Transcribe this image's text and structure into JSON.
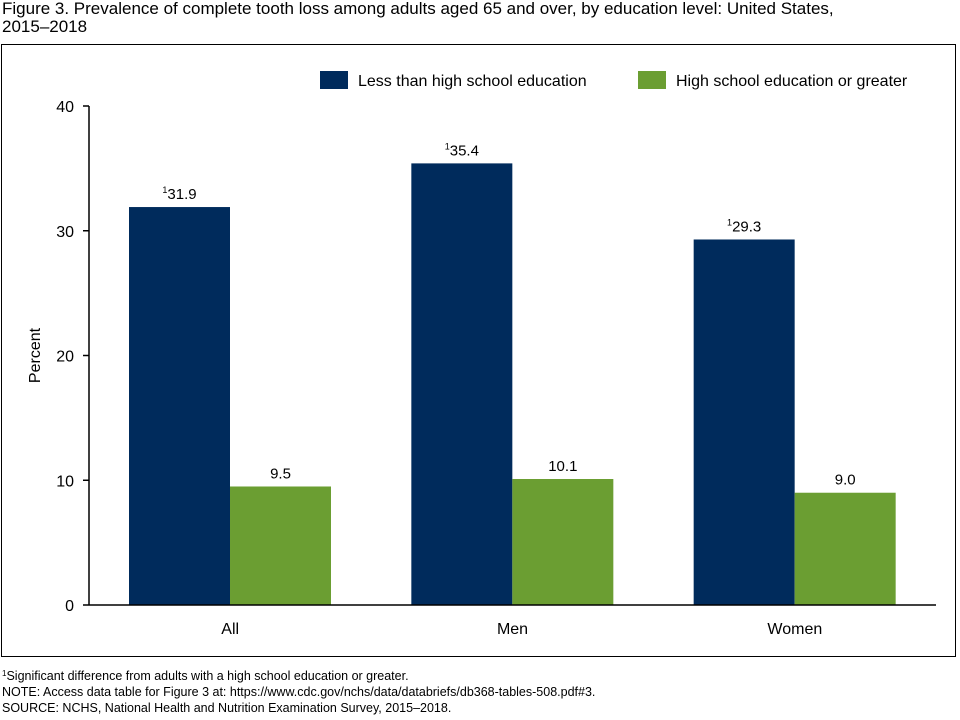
{
  "figure": {
    "title_line1": "Figure 3. Prevalence of complete tooth loss among adults aged 65 and over, by education level: United States,",
    "title_line2": "2015–2018"
  },
  "chart_data": {
    "type": "bar",
    "title": "Prevalence of complete tooth loss among adults aged 65 and over, by education level: United States, 2015–2018",
    "categories": [
      "All",
      "Men",
      "Women"
    ],
    "series": [
      {
        "name": "Less than high school education",
        "color": "#002b5c",
        "values": [
          31.9,
          35.4,
          29.3
        ],
        "labels": [
          "31.9",
          "35.4",
          "29.3"
        ],
        "label_prefix": [
          "1",
          "1",
          "1"
        ]
      },
      {
        "name": "High school education or greater",
        "color": "#6b9e32",
        "values": [
          9.5,
          10.1,
          9.0
        ],
        "labels": [
          "9.5",
          "10.1",
          "9.0"
        ],
        "label_prefix": [
          "",
          "",
          ""
        ]
      }
    ],
    "xlabel": "",
    "ylabel": "Percent",
    "ylim": [
      0,
      40
    ],
    "yticks": [
      0,
      10,
      20,
      30,
      40
    ],
    "grid": false,
    "legend_position": "top-right"
  },
  "footnotes": {
    "note1_mark": "1",
    "note1_text": "Significant difference from adults with a high school education or greater.",
    "note2": "NOTE: Access data table for Figure 3 at: https://www.cdc.gov/nchs/data/databriefs/db368-tables-508.pdf#3.",
    "source": "SOURCE: NCHS, National Health and Nutrition Examination Survey, 2015–2018."
  }
}
